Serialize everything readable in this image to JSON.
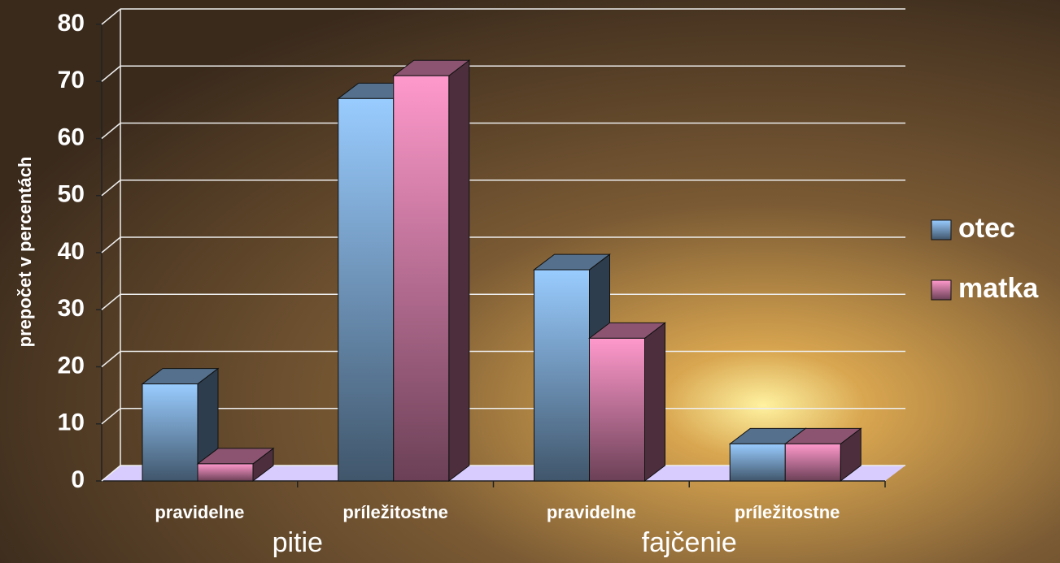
{
  "chart_data": {
    "type": "bar3d",
    "y_label": "prepočet v percentách",
    "categories": [
      "pravidelne",
      "príležitostne",
      "pravidelne",
      "príležitostne"
    ],
    "groups": [
      "pitie",
      "fajčenie"
    ],
    "series": [
      {
        "name": "otec",
        "color": "#99ccff",
        "values": [
          17,
          67,
          37,
          6.5
        ]
      },
      {
        "name": "matka",
        "color": "#ff99cc",
        "values": [
          3,
          71,
          25,
          6.5
        ]
      }
    ],
    "ylim": [
      0,
      80
    ],
    "yticks": [
      0,
      10,
      20,
      30,
      40,
      50,
      60,
      70,
      80
    ],
    "grid": true,
    "legend": "right"
  }
}
